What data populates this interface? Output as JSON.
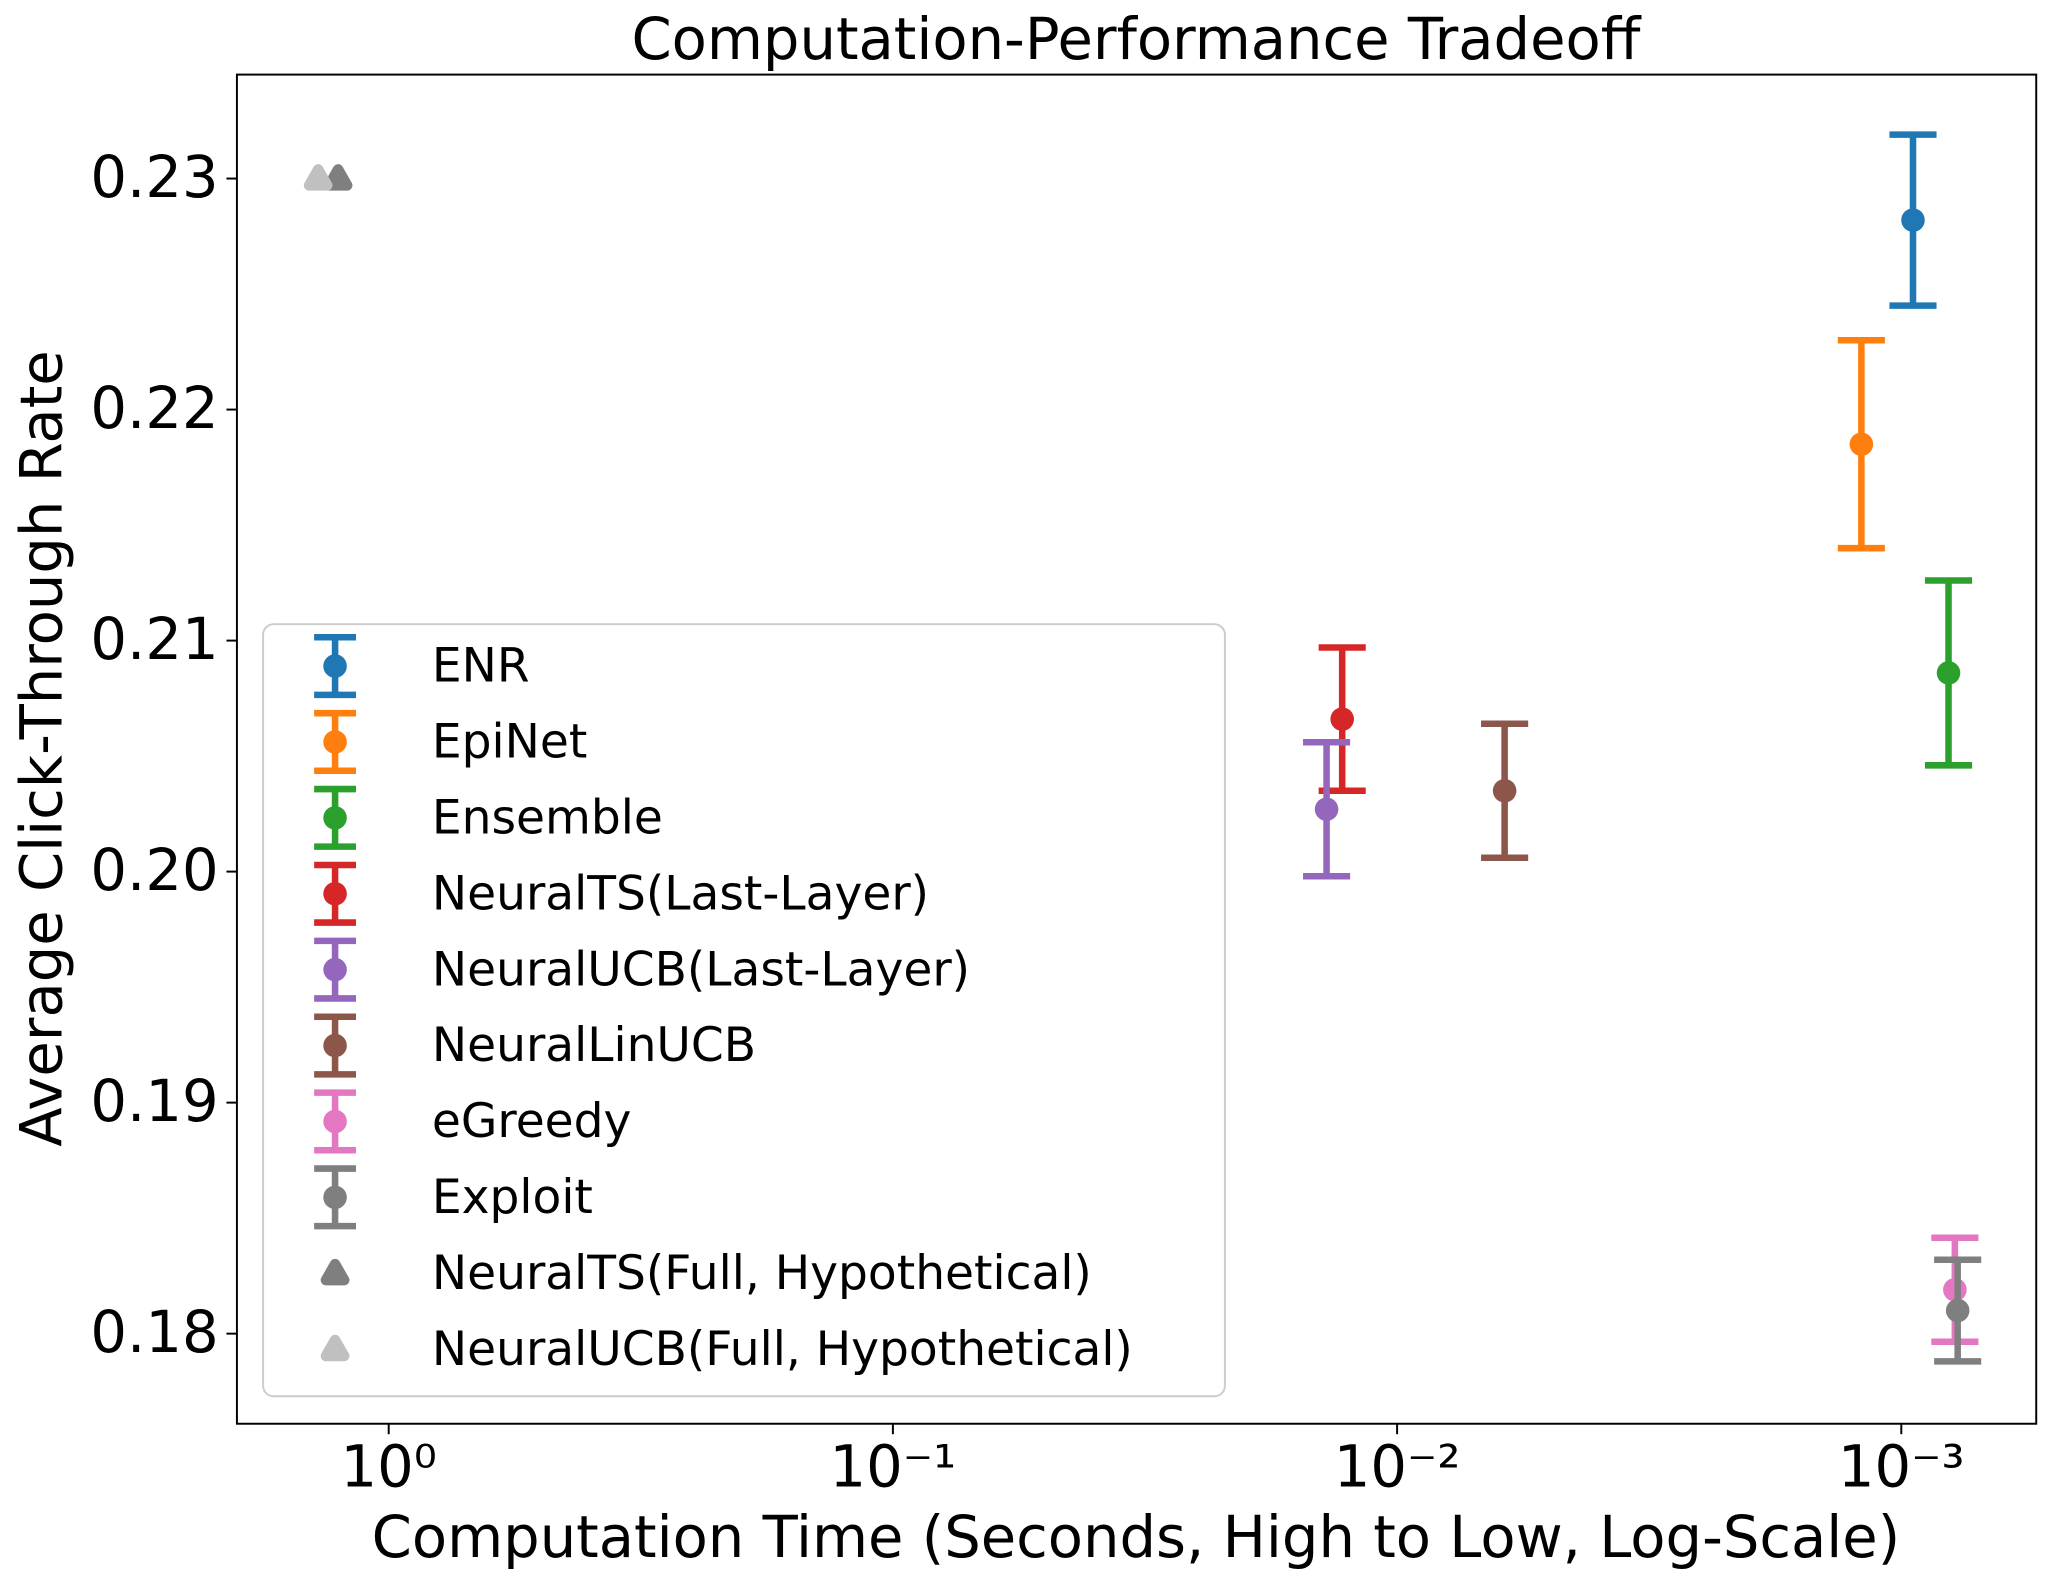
{
  "chart_data": {
    "type": "errorbar",
    "title": "Computation-Performance Tradeoff",
    "x_label": "Computation Time (Seconds, High to Low, Log-Scale)",
    "y_label": "Average Click-Through Rate",
    "x_scale": "log",
    "xlim": [
      2.0,
      0.00054
    ],
    "xticks": [
      {
        "value": 1,
        "label": "10⁰"
      },
      {
        "value": 0.1,
        "label": "10⁻¹"
      },
      {
        "value": 0.01,
        "label": "10⁻²"
      },
      {
        "value": 0.001,
        "label": "10⁻³"
      }
    ],
    "ylim": [
      0.1761,
      0.2345
    ],
    "yticks": [
      0.18,
      0.19,
      {
        "value": 0.2,
        "label": "0.20"
      },
      0.21,
      0.22,
      0.23
    ],
    "grid": false,
    "legend": "lower left",
    "series": [
      {
        "name": "ENR",
        "color": "#1f77b4",
        "x": [
          0.000948
        ],
        "values": [
          0.2282
        ],
        "errors": [
          0.0037
        ]
      },
      {
        "name": "EpiNet",
        "color": "#ff7f0e",
        "x": [
          0.0012
        ],
        "values": [
          0.2185
        ],
        "errors": [
          0.0045
        ]
      },
      {
        "name": "Ensemble",
        "color": "#2ca02c",
        "x": [
          0.000806
        ],
        "values": [
          0.2086
        ],
        "errors": [
          0.004
        ]
      },
      {
        "name": "NeuralTS(Last-Layer)",
        "color": "#d62728",
        "x": [
          0.01285
        ],
        "values": [
          0.2066
        ],
        "errors": [
          0.0031
        ]
      },
      {
        "name": "NeuralUCB(Last-Layer)",
        "color": "#9467bd",
        "x": [
          0.0138
        ],
        "values": [
          0.2027
        ],
        "errors": [
          0.0029
        ]
      },
      {
        "name": "NeuralLinUCB",
        "color": "#8c564b",
        "x": [
          0.00612
        ],
        "values": [
          0.2035
        ],
        "errors": [
          0.0029
        ]
      },
      {
        "name": "eGreedy",
        "color": "#e377c2",
        "x": [
          0.000783
        ],
        "values": [
          0.1819
        ],
        "errors": [
          0.00225
        ]
      },
      {
        "name": "Exploit",
        "color": "#7f7f7f",
        "x": [
          0.000773
        ],
        "values": [
          0.181
        ],
        "errors": [
          0.0022
        ]
      },
      {
        "name": "NeuralTS(Full, Hypothetical)",
        "color": "#7f7f7f",
        "marker": "triangle",
        "x": [
          1.26
        ],
        "values": [
          0.23
        ]
      },
      {
        "name": "NeuralUCB(Full, Hypothetical)",
        "color": "#c0c0c0",
        "marker": "triangle",
        "x": [
          1.38
        ],
        "values": [
          0.23
        ]
      }
    ]
  }
}
